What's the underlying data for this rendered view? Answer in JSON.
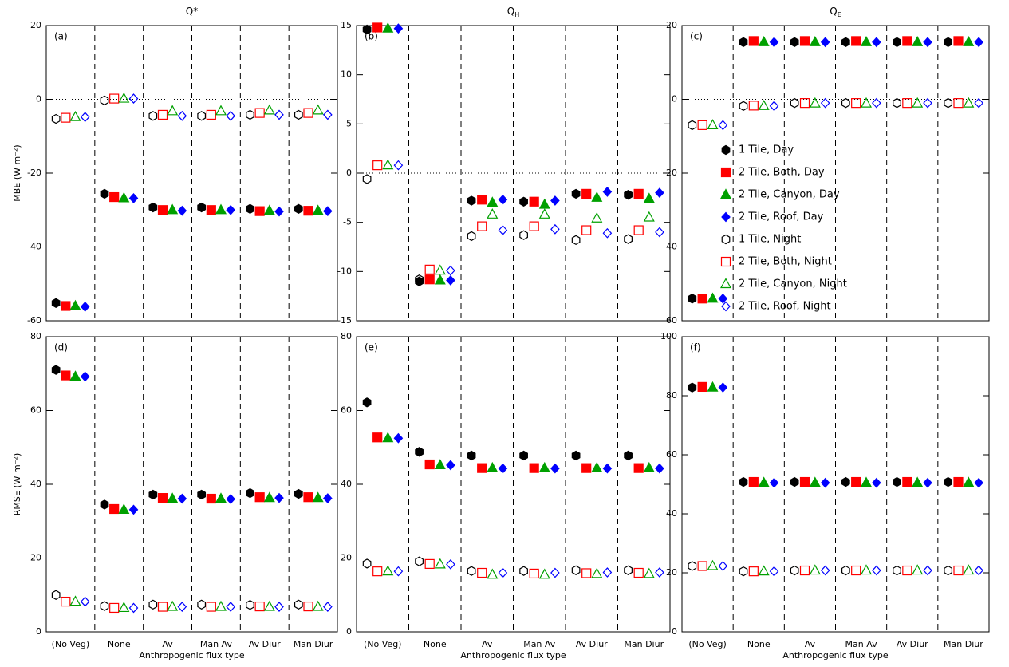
{
  "chart_data": [
    {
      "type": "dot",
      "title": "Q*",
      "label": "(a)",
      "ylabel": "MBE (W m⁻²)",
      "ylim": [
        -60,
        20
      ],
      "yticks": [
        -60,
        -40,
        -20,
        0,
        20
      ],
      "hline": 0,
      "series": [
        {
          "color": "#000000",
          "marker": "hexagon",
          "filled": true,
          "values": [
            -55.2,
            -25.6,
            -29.3,
            -29.3,
            -29.7,
            -29.7
          ]
        },
        {
          "color": "#ff0000",
          "marker": "square",
          "filled": true,
          "values": [
            -56,
            -26.5,
            -30,
            -30,
            -30.3,
            -30.2
          ]
        },
        {
          "color": "#00a000",
          "marker": "triangle",
          "filled": true,
          "values": [
            -56,
            -26.8,
            -30,
            -30,
            -30.2,
            -30.2
          ]
        },
        {
          "color": "#0000ff",
          "marker": "diamond",
          "filled": true,
          "values": [
            -56.2,
            -26.8,
            -30.2,
            -30,
            -30.4,
            -30.3
          ]
        },
        {
          "color": "#000000",
          "marker": "hexagon",
          "filled": false,
          "values": [
            -5.3,
            -0.3,
            -4.5,
            -4.5,
            -4.2,
            -4.2
          ]
        },
        {
          "color": "#ff0000",
          "marker": "square",
          "filled": false,
          "values": [
            -5,
            0.2,
            -4.2,
            -4.2,
            -3.7,
            -3.7
          ]
        },
        {
          "color": "#00a000",
          "marker": "triangle",
          "filled": false,
          "values": [
            -4.8,
            0.2,
            -3.2,
            -3.2,
            -3,
            -3
          ]
        },
        {
          "color": "#0000ff",
          "marker": "diamond",
          "filled": false,
          "values": [
            -4.8,
            0.2,
            -4.5,
            -4.5,
            -4.2,
            -4.2
          ]
        }
      ]
    },
    {
      "type": "dot",
      "title": "Q",
      "title_sub": "H",
      "label": "(b)",
      "ylim": [
        -15,
        15
      ],
      "yticks": [
        -15,
        -10,
        -5,
        0,
        5,
        10,
        15
      ],
      "hline": 0,
      "series": [
        {
          "color": "#000000",
          "marker": "hexagon",
          "filled": true,
          "values": [
            14.6,
            -11,
            -2.8,
            -2.9,
            -2.1,
            -2.2
          ]
        },
        {
          "color": "#ff0000",
          "marker": "square",
          "filled": true,
          "values": [
            14.8,
            -10.8,
            -2.7,
            -2.9,
            -2.1,
            -2.1
          ]
        },
        {
          "color": "#00a000",
          "marker": "triangle",
          "filled": true,
          "values": [
            14.7,
            -10.9,
            -3,
            -3.2,
            -2.5,
            -2.6
          ]
        },
        {
          "color": "#0000ff",
          "marker": "diamond",
          "filled": true,
          "values": [
            14.7,
            -10.9,
            -2.7,
            -2.8,
            -1.9,
            -2
          ]
        },
        {
          "color": "#000000",
          "marker": "hexagon",
          "filled": false,
          "values": [
            -0.6,
            -10.8,
            -6.4,
            -6.3,
            -6.8,
            -6.7
          ]
        },
        {
          "color": "#ff0000",
          "marker": "square",
          "filled": false,
          "values": [
            0.8,
            -9.8,
            -5.4,
            -5.4,
            -5.8,
            -5.8
          ]
        },
        {
          "color": "#00a000",
          "marker": "triangle",
          "filled": false,
          "values": [
            0.8,
            -9.9,
            -4.2,
            -4.2,
            -4.6,
            -4.5
          ]
        },
        {
          "color": "#0000ff",
          "marker": "diamond",
          "filled": false,
          "values": [
            0.8,
            -9.9,
            -5.8,
            -5.7,
            -6.1,
            -6
          ]
        }
      ]
    },
    {
      "type": "dot",
      "title": "Q",
      "title_sub": "E",
      "label": "(c)",
      "ylim": [
        -60,
        20
      ],
      "yticks": [
        -60,
        -40,
        -20,
        0,
        20
      ],
      "hline": 0,
      "legend": "lower right",
      "series": [
        {
          "name": "1 Tile, Day",
          "color": "#000000",
          "marker": "hexagon",
          "filled": true,
          "values": [
            -54,
            15.5,
            15.5,
            15.5,
            15.5,
            15.5
          ]
        },
        {
          "name": "2 Tile, Both, Day",
          "color": "#ff0000",
          "marker": "square",
          "filled": true,
          "values": [
            -54,
            15.8,
            15.8,
            15.8,
            15.8,
            15.8
          ]
        },
        {
          "name": "2 Tile, Canyon, Day",
          "color": "#00a000",
          "marker": "triangle",
          "filled": true,
          "values": [
            -54,
            15.5,
            15.5,
            15.5,
            15.5,
            15.5
          ]
        },
        {
          "name": "2 Tile, Roof, Day",
          "color": "#0000ff",
          "marker": "diamond",
          "filled": true,
          "values": [
            -54,
            15.5,
            15.5,
            15.5,
            15.5,
            15.5
          ]
        },
        {
          "name": "1 Tile, Night",
          "color": "#000000",
          "marker": "hexagon",
          "filled": false,
          "values": [
            -7,
            -1.8,
            -1,
            -1,
            -1,
            -1
          ]
        },
        {
          "name": "2 Tile, Both, Night",
          "color": "#ff0000",
          "marker": "square",
          "filled": false,
          "values": [
            -7,
            -1.7,
            -1,
            -1,
            -1,
            -1
          ]
        },
        {
          "name": "2 Tile, Canyon, Night",
          "color": "#00a000",
          "marker": "triangle",
          "filled": false,
          "values": [
            -7,
            -1.8,
            -1.1,
            -1.1,
            -1.1,
            -1.1
          ]
        },
        {
          "name": "2 Tile, Roof, Night",
          "color": "#0000ff",
          "marker": "diamond",
          "filled": false,
          "values": [
            -7,
            -1.8,
            -1,
            -1,
            -1,
            -1
          ]
        }
      ]
    },
    {
      "type": "dot",
      "label": "(d)",
      "ylabel": "RMSE (W m⁻²)",
      "xlabel": "Anthropogenic flux type",
      "categories": [
        "(No Veg)",
        "None",
        "Av",
        "Man Av",
        "Av Diur",
        "Man Diur"
      ],
      "ylim": [
        0,
        80
      ],
      "yticks": [
        0,
        20,
        40,
        60,
        80
      ],
      "series": [
        {
          "color": "#000000",
          "marker": "hexagon",
          "filled": true,
          "values": [
            71,
            34.5,
            37.2,
            37.2,
            37.6,
            37.4
          ]
        },
        {
          "color": "#ff0000",
          "marker": "square",
          "filled": true,
          "values": [
            69.5,
            33.3,
            36.3,
            36.1,
            36.5,
            36.5
          ]
        },
        {
          "color": "#00a000",
          "marker": "triangle",
          "filled": true,
          "values": [
            69.2,
            33.1,
            36.1,
            36.1,
            36.3,
            36.3
          ]
        },
        {
          "color": "#0000ff",
          "marker": "diamond",
          "filled": true,
          "values": [
            69.2,
            33.1,
            36.1,
            36,
            36.3,
            36.2
          ]
        },
        {
          "color": "#000000",
          "marker": "hexagon",
          "filled": false,
          "values": [
            10,
            7,
            7.4,
            7.4,
            7.3,
            7.4
          ]
        },
        {
          "color": "#ff0000",
          "marker": "square",
          "filled": false,
          "values": [
            8.2,
            6.5,
            6.8,
            6.8,
            6.9,
            6.9
          ]
        },
        {
          "color": "#00a000",
          "marker": "triangle",
          "filled": false,
          "values": [
            8.2,
            6.5,
            6.8,
            6.8,
            6.8,
            6.8
          ]
        },
        {
          "color": "#0000ff",
          "marker": "diamond",
          "filled": false,
          "values": [
            8.2,
            6.5,
            6.8,
            6.8,
            6.8,
            6.8
          ]
        }
      ]
    },
    {
      "type": "dot",
      "label": "(e)",
      "xlabel": "Anthropogenic flux type",
      "categories": [
        "(No Veg)",
        "None",
        "Av",
        "Man Av",
        "Av Diur",
        "Man Diur"
      ],
      "ylim": [
        0,
        80
      ],
      "yticks": [
        0,
        20,
        40,
        60,
        80
      ],
      "series": [
        {
          "color": "#000000",
          "marker": "hexagon",
          "filled": true,
          "values": [
            62.2,
            48.8,
            47.8,
            47.8,
            47.8,
            47.8
          ]
        },
        {
          "color": "#ff0000",
          "marker": "square",
          "filled": true,
          "values": [
            52.7,
            45.4,
            44.4,
            44.4,
            44.4,
            44.4
          ]
        },
        {
          "color": "#00a000",
          "marker": "triangle",
          "filled": true,
          "values": [
            52.5,
            45.2,
            44.4,
            44.4,
            44.4,
            44.4
          ]
        },
        {
          "color": "#0000ff",
          "marker": "diamond",
          "filled": true,
          "values": [
            52.5,
            45.2,
            44.3,
            44.3,
            44.3,
            44.3
          ]
        },
        {
          "color": "#000000",
          "marker": "hexagon",
          "filled": false,
          "values": [
            18.5,
            19.1,
            16.5,
            16.5,
            16.7,
            16.7
          ]
        },
        {
          "color": "#ff0000",
          "marker": "square",
          "filled": false,
          "values": [
            16.4,
            18.4,
            16,
            15.8,
            15.9,
            16
          ]
        },
        {
          "color": "#00a000",
          "marker": "triangle",
          "filled": false,
          "values": [
            16.4,
            18.3,
            15.5,
            15.5,
            15.7,
            15.7
          ]
        },
        {
          "color": "#0000ff",
          "marker": "diamond",
          "filled": false,
          "values": [
            16.4,
            18.3,
            16,
            16,
            16.1,
            16.1
          ]
        }
      ]
    },
    {
      "type": "dot",
      "label": "(f)",
      "xlabel": "Anthropogenic flux type",
      "categories": [
        "(No Veg)",
        "None",
        "Av",
        "Man Av",
        "Av Diur",
        "Man Diur"
      ],
      "ylim": [
        0,
        100
      ],
      "yticks": [
        0,
        20,
        40,
        60,
        80,
        100
      ],
      "series": [
        {
          "color": "#000000",
          "marker": "hexagon",
          "filled": true,
          "values": [
            82.8,
            50.8,
            50.8,
            50.8,
            50.8,
            50.8
          ]
        },
        {
          "color": "#ff0000",
          "marker": "square",
          "filled": true,
          "values": [
            83,
            50.8,
            50.8,
            50.8,
            50.8,
            50.8
          ]
        },
        {
          "color": "#00a000",
          "marker": "triangle",
          "filled": true,
          "values": [
            82.8,
            50.5,
            50.5,
            50.5,
            50.5,
            50.5
          ]
        },
        {
          "color": "#0000ff",
          "marker": "diamond",
          "filled": true,
          "values": [
            82.8,
            50.5,
            50.5,
            50.5,
            50.5,
            50.5
          ]
        },
        {
          "color": "#000000",
          "marker": "hexagon",
          "filled": false,
          "values": [
            22.3,
            20.5,
            20.8,
            20.8,
            20.8,
            20.8
          ]
        },
        {
          "color": "#ff0000",
          "marker": "square",
          "filled": false,
          "values": [
            22.3,
            20.5,
            20.8,
            20.8,
            20.8,
            20.8
          ]
        },
        {
          "color": "#00a000",
          "marker": "triangle",
          "filled": false,
          "values": [
            22.3,
            20.5,
            20.8,
            20.8,
            20.8,
            20.8
          ]
        },
        {
          "color": "#0000ff",
          "marker": "diamond",
          "filled": false,
          "values": [
            22.3,
            20.5,
            20.8,
            20.8,
            20.8,
            20.8
          ]
        }
      ]
    }
  ]
}
